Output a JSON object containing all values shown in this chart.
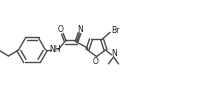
{
  "bg_color": "#ffffff",
  "line_color": "#4a4a4a",
  "text_color": "#1a1a1a",
  "lw": 1.0,
  "figsize": [
    2.13,
    1.01
  ],
  "dpi": 100,
  "xlim": [
    0,
    213
  ],
  "ylim": [
    0,
    101
  ]
}
